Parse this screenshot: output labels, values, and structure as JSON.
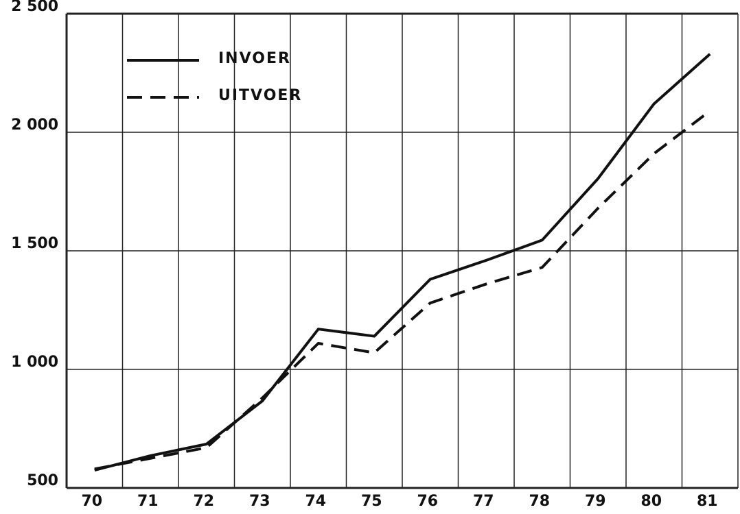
{
  "chart_data": {
    "type": "line",
    "categories": [
      "70",
      "71",
      "72",
      "73",
      "74",
      "75",
      "76",
      "77",
      "78",
      "79",
      "80",
      "81"
    ],
    "series": [
      {
        "name": "INVOER",
        "color": "#111111",
        "style": "solid",
        "values": [
          575,
          636,
          685,
          867,
          1170,
          1140,
          1380,
          1460,
          1545,
          1805,
          2120,
          2330
        ]
      },
      {
        "name": "UITVOER",
        "color": "#111111",
        "style": "dashed",
        "values": [
          580,
          625,
          670,
          880,
          1110,
          1070,
          1280,
          1360,
          1430,
          1680,
          1910,
          2090
        ]
      }
    ],
    "ylim": [
      500,
      2500
    ],
    "yticks": [
      {
        "value": 500,
        "label": "500"
      },
      {
        "value": 1000,
        "label": "1 000"
      },
      {
        "value": 1500,
        "label": "1 500"
      },
      {
        "value": 2000,
        "label": "2 000"
      },
      {
        "value": 2500,
        "label": "2 500"
      }
    ],
    "grid": true,
    "legend": "upper left"
  }
}
